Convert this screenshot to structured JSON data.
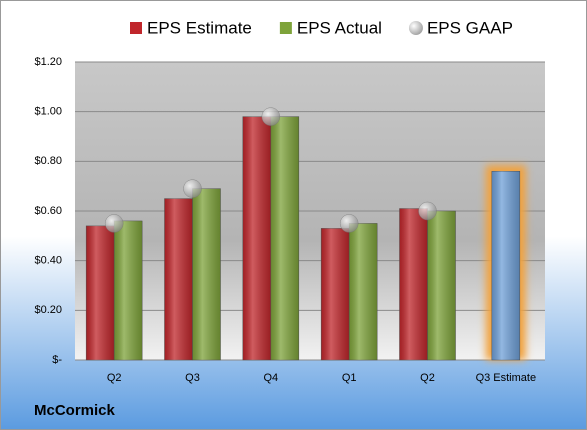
{
  "chart_data": {
    "type": "bar",
    "categories": [
      "Q2",
      "Q3",
      "Q4",
      "Q1",
      "Q2",
      "Q3 Estimate"
    ],
    "series": [
      {
        "name": "EPS Estimate",
        "color": "#c0262b",
        "values": [
          0.54,
          0.65,
          0.98,
          0.53,
          0.61,
          null
        ]
      },
      {
        "name": "EPS Actual",
        "color": "#7ea33a",
        "values": [
          0.56,
          0.69,
          0.98,
          0.55,
          0.6,
          null
        ]
      },
      {
        "name": "EPS GAAP",
        "color": "#b8bcc4",
        "marker": "circle",
        "values": [
          0.55,
          0.69,
          0.98,
          0.55,
          0.6,
          null
        ]
      },
      {
        "color": "#6fa0d8",
        "glow": "#f2a23c",
        "values": [
          null,
          null,
          null,
          null,
          null,
          0.76
        ]
      }
    ],
    "ylim": [
      0,
      1.2
    ],
    "yticks": [
      {
        "value": 0,
        "label": "$-"
      },
      {
        "value": 0.2,
        "label": "$0.20"
      },
      {
        "value": 0.4,
        "label": "$0.40"
      },
      {
        "value": 0.6,
        "label": "$0.60"
      },
      {
        "value": 0.8,
        "label": "$0.80"
      },
      {
        "value": 1.0,
        "label": "$1.00"
      },
      {
        "value": 1.2,
        "label": "$1.20"
      }
    ],
    "grid": true,
    "legend": "top",
    "source": "McCormick"
  }
}
